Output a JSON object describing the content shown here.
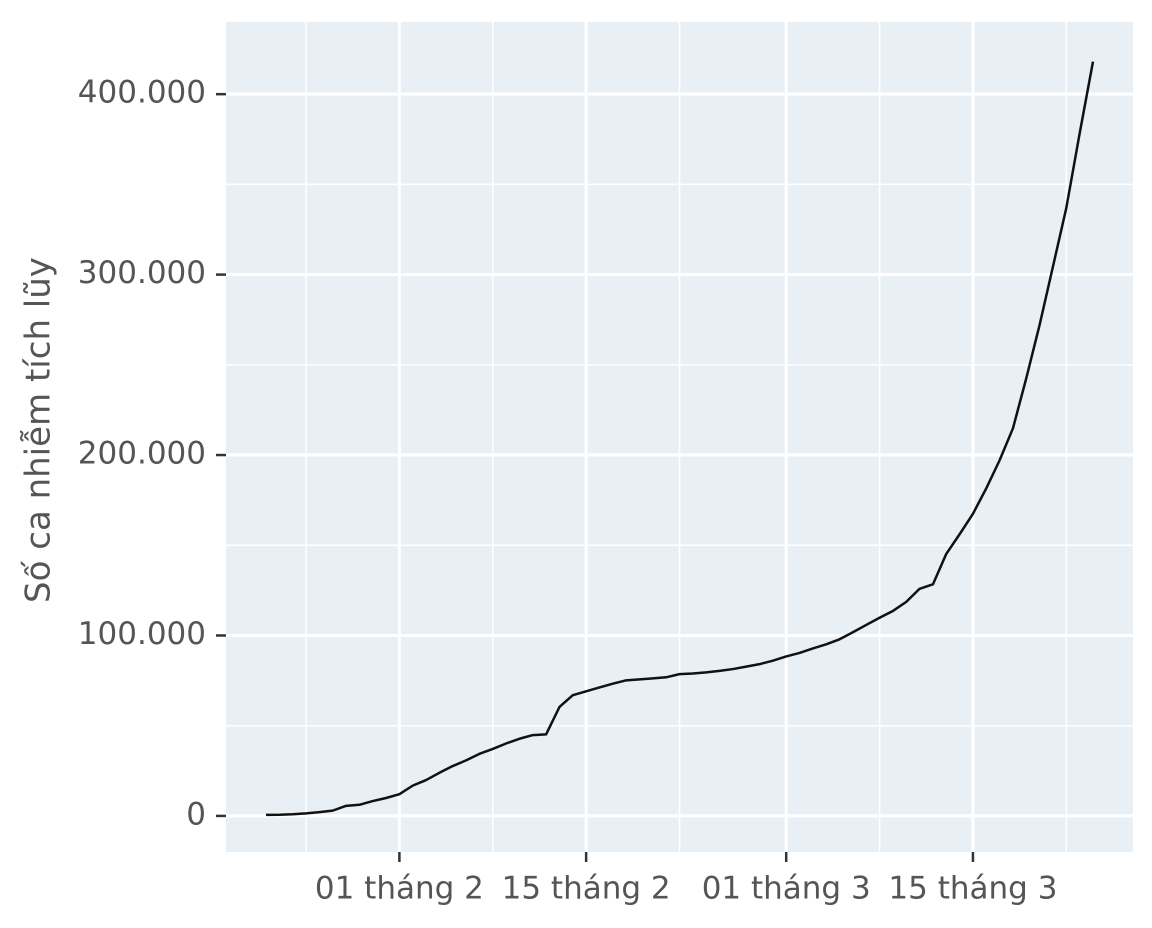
{
  "chart_data": {
    "type": "line",
    "y_label": "Số ca nhiễm tích lũy",
    "x": [
      "01-22",
      "01-23",
      "01-24",
      "01-25",
      "01-26",
      "01-27",
      "01-28",
      "01-29",
      "01-30",
      "01-31",
      "02-01",
      "02-02",
      "02-03",
      "02-04",
      "02-05",
      "02-06",
      "02-07",
      "02-08",
      "02-09",
      "02-10",
      "02-11",
      "02-12",
      "02-13",
      "02-14",
      "02-15",
      "02-16",
      "02-17",
      "02-18",
      "02-19",
      "02-20",
      "02-21",
      "02-22",
      "02-23",
      "02-24",
      "02-25",
      "02-26",
      "02-27",
      "02-28",
      "02-29",
      "03-01",
      "03-02",
      "03-03",
      "03-04",
      "03-05",
      "03-06",
      "03-07",
      "03-08",
      "03-09",
      "03-10",
      "03-11",
      "03-12",
      "03-13",
      "03-14",
      "03-15",
      "03-16",
      "03-17",
      "03-18",
      "03-19",
      "03-20",
      "03-21",
      "03-22",
      "03-23",
      "03-24"
    ],
    "values": [
      555,
      654,
      941,
      1434,
      2118,
      2927,
      5578,
      6166,
      8234,
      9927,
      12038,
      16787,
      19881,
      23892,
      27635,
      30794,
      34391,
      37120,
      40150,
      42762,
      44802,
      45221,
      60368,
      66885,
      69030,
      71224,
      73258,
      75136,
      75639,
      76197,
      76819,
      78572,
      78958,
      79561,
      80406,
      81388,
      82746,
      84112,
      86011,
      88369,
      90306,
      92840,
      95120,
      97886,
      101801,
      105847,
      109821,
      113590,
      118620,
      125875,
      128352,
      145205,
      156101,
      167454,
      181574,
      197102,
      214821,
      242570,
      272208,
      304507,
      336953,
      378235,
      418045
    ],
    "color": "#111111",
    "background": "#e8f0f5",
    "grid": true,
    "xlim": [
      "01-19",
      "03-27"
    ],
    "xticks": [
      {
        "value": "02-01",
        "label": "01 tháng 2"
      },
      {
        "value": "02-15",
        "label": "15 tháng 2"
      },
      {
        "value": "03-01",
        "label": "01 tháng 3"
      },
      {
        "value": "03-15",
        "label": "15 tháng 3"
      }
    ],
    "xminorticks": [
      "01-25",
      "02-08",
      "02-22",
      "03-08",
      "03-22"
    ],
    "ylim": [
      -20000,
      440000
    ],
    "yticks": [
      0,
      {
        "value": 100000,
        "label": "100.000"
      },
      {
        "value": 200000,
        "label": "200.000"
      },
      {
        "value": 300000,
        "label": "300.000"
      },
      {
        "value": 400000,
        "label": "400.000"
      }
    ],
    "yminorticks": [
      50000,
      150000,
      250000,
      350000
    ]
  }
}
